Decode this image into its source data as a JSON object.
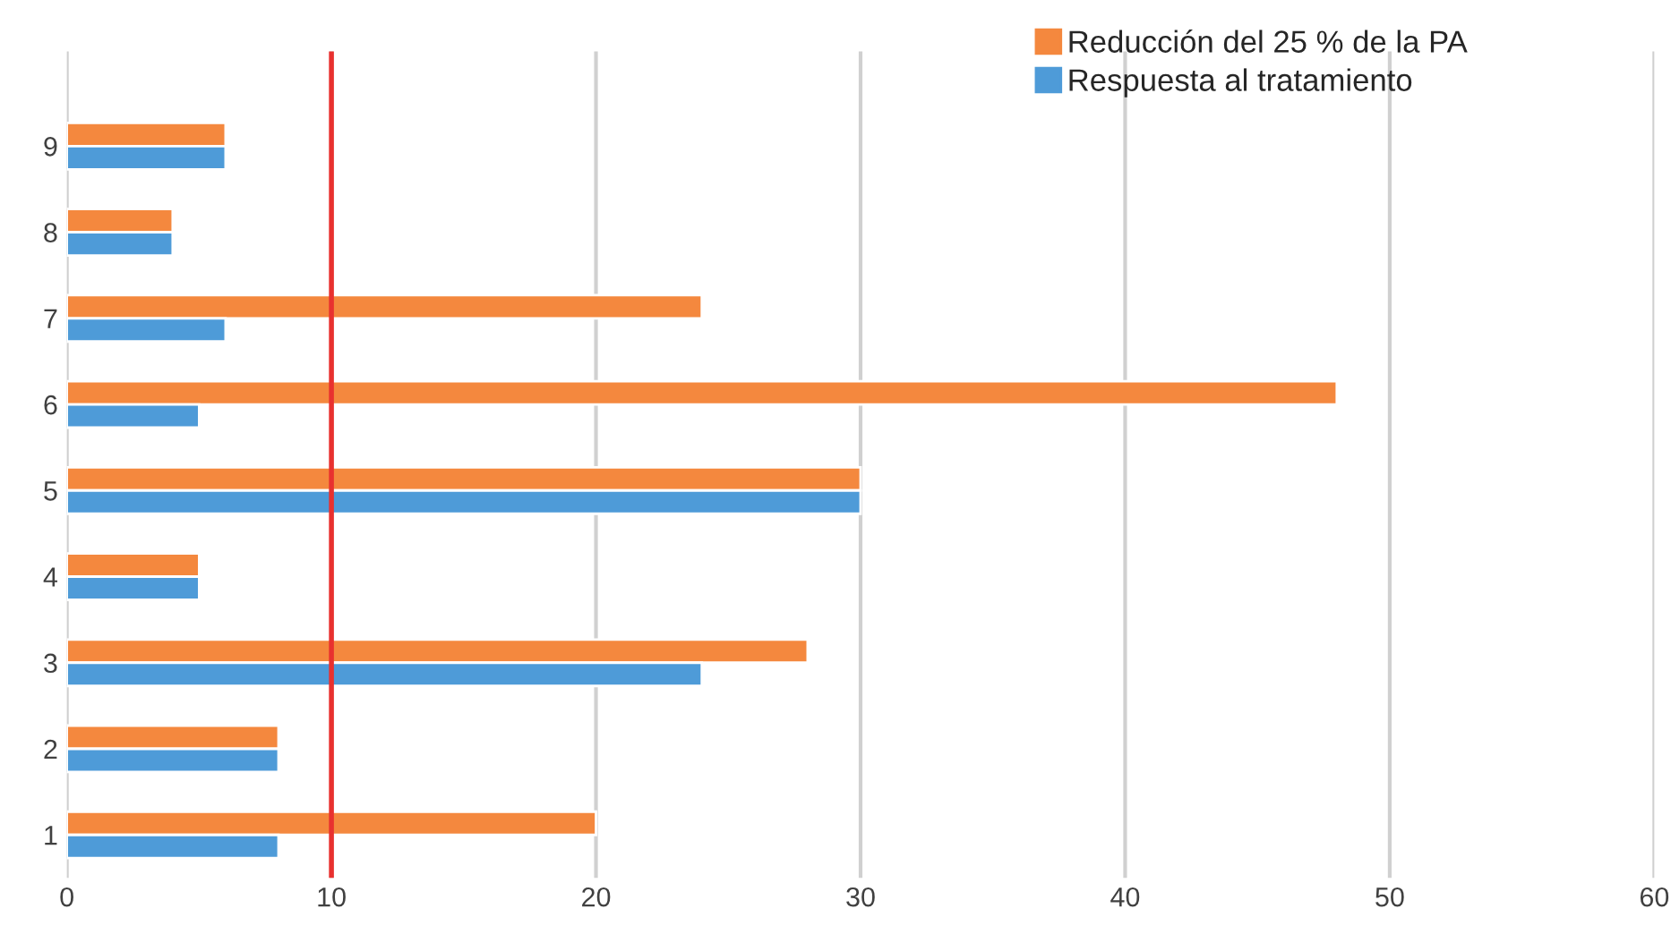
{
  "chart_data": {
    "type": "bar",
    "orientation": "horizontal",
    "categories": [
      "9",
      "8",
      "7",
      "6",
      "5",
      "4",
      "3",
      "2",
      "1"
    ],
    "series": [
      {
        "name": "Reducción del 25 % de la PA",
        "color": "#f4883e",
        "values": [
          6,
          4,
          24,
          48,
          30,
          5,
          28,
          8,
          20
        ]
      },
      {
        "name": "Respuesta al tratamiento",
        "color": "#4e9bd8",
        "values": [
          6,
          4,
          6,
          5,
          30,
          5,
          24,
          8,
          8
        ]
      }
    ],
    "xlim": [
      0,
      60
    ],
    "xticks": [
      0,
      10,
      20,
      30,
      40,
      50,
      60
    ],
    "grid": "x",
    "legend": "top right",
    "ref_lines": [
      {
        "axis": "x",
        "value": 10,
        "color": "#e8312f"
      }
    ]
  }
}
